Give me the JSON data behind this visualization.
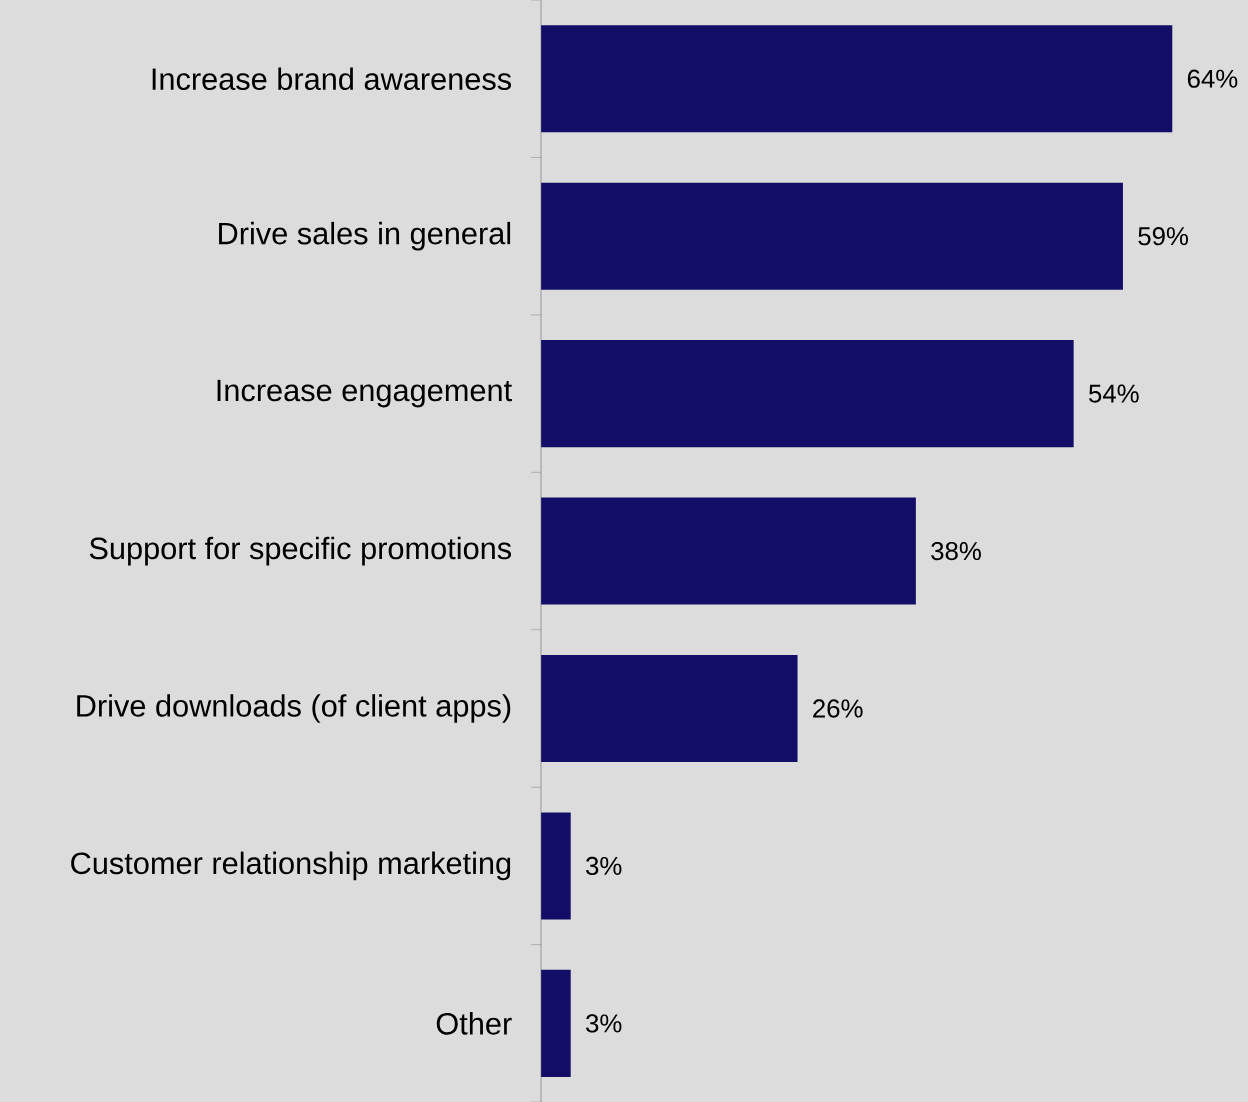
{
  "chart_data": {
    "type": "bar",
    "orientation": "horizontal",
    "categories": [
      "Increase brand awareness",
      "Drive sales in general",
      "Increase engagement",
      "Support for specific promotions",
      "Drive downloads (of client apps)",
      "Customer relationship marketing",
      "Other"
    ],
    "values": [
      64,
      59,
      54,
      38,
      26,
      3,
      3
    ],
    "value_labels": [
      "64%",
      "59%",
      "54%",
      "38%",
      "26%",
      "3%",
      "3%"
    ],
    "color": "#120d66",
    "grid": false
  }
}
